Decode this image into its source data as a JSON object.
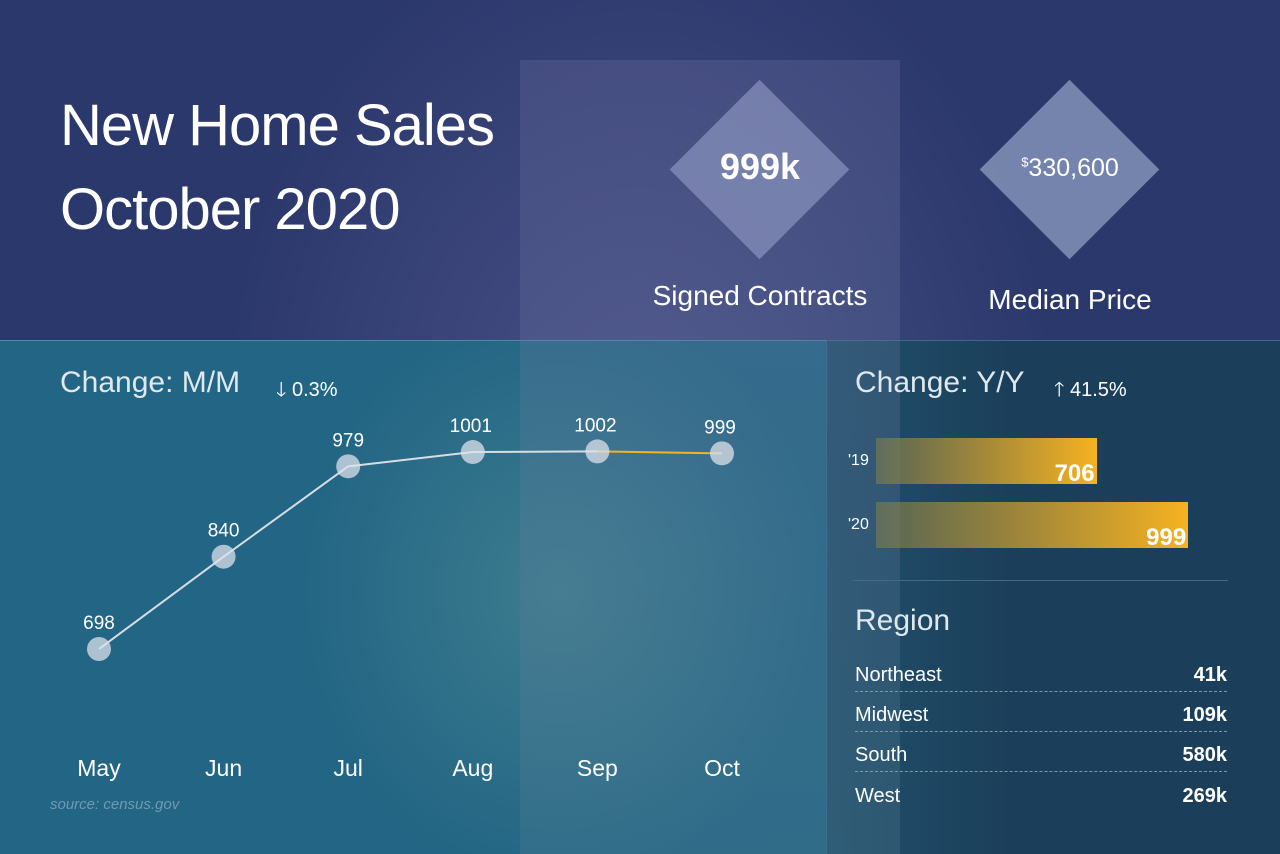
{
  "header": {
    "title_line1": "New Home Sales",
    "title_line2": "October 2020"
  },
  "stats": [
    {
      "value": "999k",
      "label": "Signed Contracts"
    },
    {
      "currency": "$",
      "value": "330,600",
      "label": "Median Price"
    }
  ],
  "mm": {
    "title": "Change: M/M",
    "arrow": "arrow-down-icon",
    "change": "0.3%"
  },
  "yy": {
    "title": "Change: Y/Y",
    "arrow": "arrow-up-icon",
    "change": "41.5%"
  },
  "source": "source: census.gov",
  "region": {
    "title": "Region",
    "rows": [
      {
        "name": "Northeast",
        "value": "41k"
      },
      {
        "name": "Midwest",
        "value": "109k"
      },
      {
        "name": "South",
        "value": "580k"
      },
      {
        "name": "West",
        "value": "269k"
      }
    ]
  },
  "chart_data": [
    {
      "type": "line",
      "title": "Change: M/M",
      "categories": [
        "May",
        "Jun",
        "Jul",
        "Aug",
        "Sep",
        "Oct"
      ],
      "values": [
        698,
        840,
        979,
        1001,
        1002,
        999
      ],
      "labels": [
        "698",
        "840",
        "979",
        "1001",
        "1002",
        "999"
      ],
      "colors": {
        "line": "#d8dde4",
        "last_segment": "#f6b221"
      }
    },
    {
      "type": "bar",
      "title": "Change: Y/Y",
      "categories": [
        "'19",
        "'20"
      ],
      "values": [
        706,
        999
      ],
      "labels": [
        "706",
        "999"
      ],
      "colors": {
        "bar": "#f6b221"
      }
    }
  ]
}
